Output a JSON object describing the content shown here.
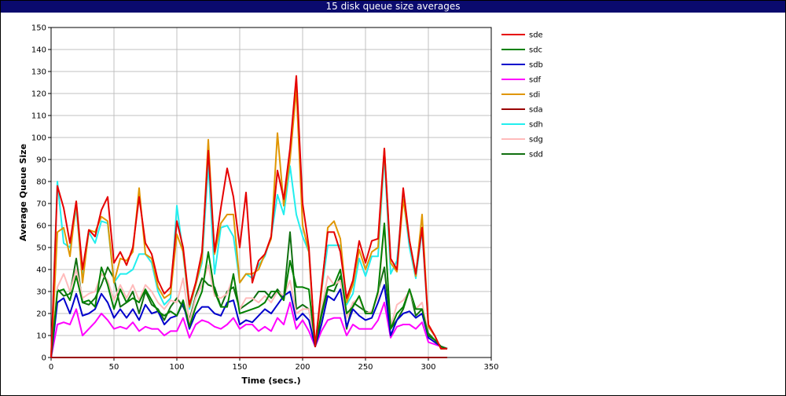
{
  "chart_data": {
    "type": "line",
    "title": "15 disk queue size averages",
    "xlabel": "Time (secs.)",
    "ylabel": "Average Queue Size",
    "xlim": [
      0,
      350
    ],
    "ylim": [
      0,
      150
    ],
    "xticks": [
      0,
      50,
      100,
      150,
      200,
      250,
      300,
      350
    ],
    "yticks": [
      0,
      10,
      20,
      30,
      40,
      50,
      60,
      70,
      80,
      90,
      100,
      110,
      120,
      130,
      140,
      150
    ],
    "grid": true,
    "legend_position": "right",
    "x": [
      0,
      5,
      10,
      15,
      20,
      25,
      30,
      35,
      40,
      45,
      50,
      55,
      60,
      65,
      70,
      75,
      80,
      85,
      90,
      95,
      100,
      105,
      110,
      115,
      120,
      125,
      130,
      135,
      140,
      145,
      150,
      155,
      160,
      165,
      170,
      175,
      180,
      185,
      190,
      195,
      200,
      205,
      210,
      215,
      220,
      225,
      230,
      235,
      240,
      245,
      250,
      255,
      260,
      265,
      270,
      275,
      280,
      285,
      290,
      295,
      300,
      305,
      310,
      315
    ],
    "series": [
      {
        "name": "sde",
        "color": "#e60000",
        "values": [
          0,
          78,
          68,
          52,
          71,
          40,
          58,
          55,
          67,
          73,
          43,
          48,
          42,
          50,
          73,
          52,
          47,
          35,
          29,
          32,
          62,
          50,
          24,
          34,
          48,
          94,
          48,
          68,
          86,
          73,
          50,
          75,
          34,
          44,
          47,
          55,
          85,
          72,
          95,
          128,
          70,
          50,
          5,
          32,
          57,
          57,
          48,
          27,
          35,
          53,
          43,
          53,
          54,
          95,
          45,
          40,
          77,
          53,
          38,
          59,
          15,
          10,
          4,
          4
        ]
      },
      {
        "name": "sdc",
        "color": "#008000",
        "values": [
          0,
          30,
          31,
          26,
          37,
          25,
          26,
          23,
          41,
          33,
          22,
          31,
          25,
          27,
          25,
          31,
          26,
          21,
          19,
          21,
          19,
          26,
          14,
          23,
          30,
          48,
          30,
          23,
          23,
          38,
          20,
          21,
          22,
          23,
          25,
          30,
          30,
          26,
          44,
          32,
          32,
          31,
          5,
          20,
          32,
          33,
          40,
          20,
          23,
          28,
          20,
          20,
          30,
          61,
          13,
          20,
          23,
          31,
          22,
          22,
          10,
          8,
          5,
          4
        ]
      },
      {
        "name": "sdb",
        "color": "#0000cc",
        "values": [
          0,
          25,
          27,
          20,
          29,
          19,
          20,
          22,
          29,
          25,
          18,
          22,
          18,
          22,
          17,
          24,
          20,
          21,
          15,
          18,
          19,
          25,
          13,
          20,
          23,
          23,
          20,
          19,
          25,
          26,
          15,
          17,
          16,
          19,
          22,
          20,
          24,
          28,
          30,
          17,
          20,
          17,
          5,
          15,
          28,
          26,
          31,
          14,
          22,
          19,
          17,
          18,
          25,
          33,
          10,
          17,
          20,
          21,
          18,
          20,
          9,
          7,
          5,
          4
        ]
      },
      {
        "name": "sdf",
        "color": "#ff00ff",
        "values": [
          0,
          15,
          16,
          15,
          22,
          10,
          13,
          16,
          20,
          17,
          13,
          14,
          13,
          16,
          12,
          14,
          13,
          13,
          10,
          12,
          12,
          18,
          9,
          15,
          17,
          16,
          14,
          13,
          15,
          18,
          13,
          15,
          15,
          12,
          14,
          12,
          18,
          15,
          25,
          13,
          17,
          12,
          5,
          12,
          17,
          18,
          18,
          10,
          15,
          13,
          13,
          13,
          17,
          25,
          9,
          14,
          15,
          15,
          13,
          16,
          7,
          6,
          5,
          4
        ]
      },
      {
        "name": "sdi",
        "color": "#e09600",
        "values": [
          0,
          57,
          59,
          46,
          71,
          34,
          58,
          57,
          64,
          62,
          34,
          45,
          44,
          48,
          77,
          47,
          45,
          32,
          27,
          29,
          56,
          48,
          23,
          33,
          45,
          99,
          47,
          61,
          65,
          65,
          34,
          38,
          38,
          40,
          47,
          54,
          102,
          69,
          90,
          122,
          60,
          48,
          5,
          30,
          59,
          62,
          54,
          25,
          33,
          49,
          40,
          48,
          50,
          95,
          43,
          39,
          72,
          53,
          37,
          65,
          14,
          10,
          4,
          4
        ]
      },
      {
        "name": "sda",
        "color": "#990000",
        "values": [
          0,
          0,
          0,
          0,
          0,
          0,
          0,
          0,
          0,
          0,
          0,
          0,
          0,
          0,
          0,
          0,
          0,
          0,
          0,
          0,
          0,
          0,
          0,
          0,
          0,
          0,
          0,
          0,
          0,
          0,
          0,
          0,
          0,
          0,
          0,
          0,
          0,
          0,
          0,
          0,
          0,
          0,
          0,
          0,
          0,
          0,
          0,
          0,
          0,
          0,
          0,
          0,
          0,
          0,
          0,
          0,
          0,
          0,
          0,
          0,
          0,
          0,
          0,
          0
        ]
      },
      {
        "name": "sdh",
        "color": "#22eeee",
        "values": [
          0,
          80,
          52,
          50,
          68,
          36,
          57,
          52,
          62,
          61,
          34,
          38,
          38,
          40,
          47,
          47,
          43,
          30,
          24,
          27,
          69,
          47,
          22,
          33,
          43,
          88,
          38,
          59,
          60,
          55,
          34,
          38,
          36,
          42,
          46,
          55,
          74,
          65,
          87,
          65,
          55,
          48,
          5,
          30,
          51,
          51,
          51,
          24,
          29,
          45,
          37,
          46,
          46,
          92,
          38,
          44,
          73,
          50,
          36,
          58,
          14,
          10,
          4,
          4
        ]
      },
      {
        "name": "sdg",
        "color": "#ffbbbb",
        "values": [
          0,
          32,
          38,
          30,
          40,
          27,
          29,
          30,
          38,
          35,
          26,
          33,
          27,
          33,
          26,
          33,
          30,
          25,
          22,
          26,
          25,
          36,
          16,
          27,
          33,
          42,
          28,
          27,
          29,
          37,
          22,
          27,
          27,
          25,
          28,
          25,
          30,
          28,
          35,
          20,
          22,
          22,
          5,
          22,
          37,
          33,
          35,
          18,
          25,
          27,
          20,
          21,
          28,
          60,
          14,
          24,
          26,
          30,
          22,
          25,
          10,
          8,
          5,
          4
        ]
      },
      {
        "name": "sdd",
        "color": "#107010",
        "values": [
          0,
          31,
          28,
          29,
          45,
          25,
          24,
          27,
          33,
          41,
          36,
          23,
          25,
          30,
          20,
          30,
          24,
          22,
          17,
          23,
          27,
          23,
          17,
          28,
          36,
          33,
          32,
          23,
          30,
          32,
          22,
          24,
          26,
          30,
          30,
          27,
          31,
          27,
          57,
          22,
          24,
          22,
          5,
          19,
          31,
          30,
          37,
          13,
          25,
          23,
          21,
          20,
          30,
          41,
          13,
          17,
          22,
          31,
          19,
          22,
          11,
          8,
          5,
          4
        ]
      }
    ]
  }
}
